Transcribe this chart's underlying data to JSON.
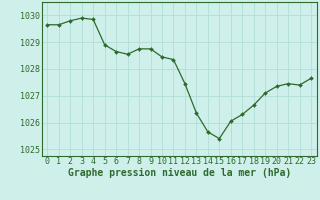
{
  "x": [
    0,
    1,
    2,
    3,
    4,
    5,
    6,
    7,
    8,
    9,
    10,
    11,
    12,
    13,
    14,
    15,
    16,
    17,
    18,
    19,
    20,
    21,
    22,
    23
  ],
  "y": [
    1029.65,
    1029.65,
    1029.8,
    1029.9,
    1029.85,
    1028.9,
    1028.65,
    1028.55,
    1028.75,
    1028.75,
    1028.45,
    1028.35,
    1027.45,
    1026.35,
    1025.65,
    1025.4,
    1026.05,
    1026.3,
    1026.65,
    1027.1,
    1027.35,
    1027.45,
    1027.4,
    1027.65
  ],
  "line_color": "#2d6a2d",
  "marker_color": "#2d6a2d",
  "background_color": "#cff0ea",
  "grid_color": "#b0ddd7",
  "xlabel": "Graphe pression niveau de la mer (hPa)",
  "ylim": [
    1024.75,
    1030.5
  ],
  "xlim": [
    -0.5,
    23.5
  ],
  "yticks": [
    1025,
    1026,
    1027,
    1028,
    1029,
    1030
  ],
  "xticks": [
    0,
    1,
    2,
    3,
    4,
    5,
    6,
    7,
    8,
    9,
    10,
    11,
    12,
    13,
    14,
    15,
    16,
    17,
    18,
    19,
    20,
    21,
    22,
    23
  ],
  "tick_color": "#2d6a2d",
  "label_fontsize": 7.0,
  "tick_fontsize": 6.0,
  "spine_color": "#2d6a2d"
}
